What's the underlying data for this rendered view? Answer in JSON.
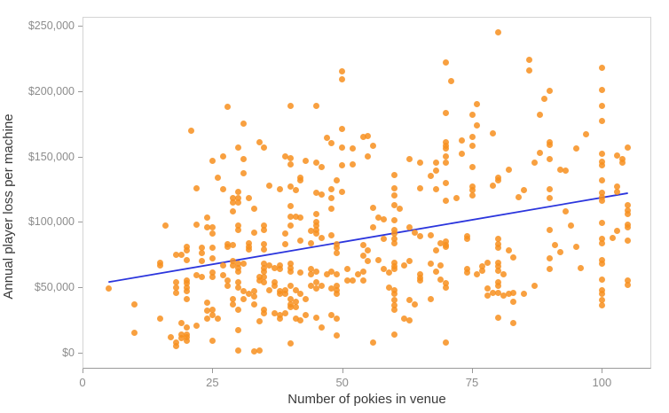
{
  "chart_data": {
    "type": "scatter",
    "title": "",
    "xlabel": "Number of pokies in venue",
    "ylabel": "Annual player loss per machine",
    "xlim": [
      0,
      109.5
    ],
    "ylim": [
      -12200,
      256800
    ],
    "grid": false,
    "legend": "none",
    "point_color": "#f78f1e",
    "point_opacity": 0.85,
    "trend_color": "#2b35dd",
    "axis_text_color": "#8c8c8c",
    "axis_title_color": "#3a3a3a",
    "x_ticks": [
      {
        "value": 0,
        "label": "0"
      },
      {
        "value": 25,
        "label": "25"
      },
      {
        "value": 50,
        "label": "50"
      },
      {
        "value": 75,
        "label": "75"
      },
      {
        "value": 100,
        "label": "100"
      }
    ],
    "y_ticks": [
      {
        "value": 0,
        "label": "$0"
      },
      {
        "value": 50000,
        "label": "$50,000"
      },
      {
        "value": 100000,
        "label": "$100,000"
      },
      {
        "value": 150000,
        "label": "$150,000"
      },
      {
        "value": 200000,
        "label": "$200,000"
      },
      {
        "value": 250000,
        "label": "$250,000"
      }
    ],
    "trend_line": {
      "x1": 5,
      "y1": 54000,
      "x2": 105,
      "y2": 122000
    },
    "points": [
      [
        21,
        170000
      ],
      [
        25,
        147000
      ],
      [
        26,
        134000
      ],
      [
        22,
        126000
      ],
      [
        50,
        215000
      ],
      [
        50,
        209000
      ],
      [
        28,
        188000
      ],
      [
        40,
        189000
      ],
      [
        45,
        189000
      ],
      [
        31,
        175000
      ],
      [
        50,
        171000
      ],
      [
        47,
        164000
      ],
      [
        48,
        160000
      ],
      [
        34,
        161000
      ],
      [
        35,
        157000
      ],
      [
        30,
        157000
      ],
      [
        50,
        157000
      ],
      [
        52,
        156000
      ],
      [
        54,
        165000
      ],
      [
        27,
        150000
      ],
      [
        39,
        150000
      ],
      [
        40,
        149000
      ],
      [
        31,
        148000
      ],
      [
        40,
        144000
      ],
      [
        43,
        147000
      ],
      [
        45,
        145000
      ],
      [
        46,
        142000
      ],
      [
        50,
        143000
      ],
      [
        52,
        144000
      ],
      [
        31,
        137000
      ],
      [
        42,
        134000
      ],
      [
        42,
        132000
      ],
      [
        36,
        128000
      ],
      [
        49,
        132000
      ],
      [
        40,
        127000
      ],
      [
        38,
        125000
      ],
      [
        41,
        124000
      ],
      [
        48,
        125000
      ],
      [
        50,
        123000
      ],
      [
        30,
        123000
      ],
      [
        27,
        125000
      ],
      [
        45,
        122000
      ],
      [
        46,
        121000
      ],
      [
        80,
        245000
      ],
      [
        70,
        222000
      ],
      [
        71,
        208000
      ],
      [
        76,
        190000
      ],
      [
        70,
        183000
      ],
      [
        75,
        182000
      ],
      [
        76,
        174000
      ],
      [
        55,
        166000
      ],
      [
        79,
        168000
      ],
      [
        75,
        165000
      ],
      [
        56,
        158000
      ],
      [
        73,
        162000
      ],
      [
        70,
        161000
      ],
      [
        70,
        158000
      ],
      [
        70,
        156000
      ],
      [
        73,
        152000
      ],
      [
        75,
        158000
      ],
      [
        55,
        150000
      ],
      [
        63,
        148000
      ],
      [
        65,
        145000
      ],
      [
        70,
        150000
      ],
      [
        70,
        145000
      ],
      [
        68,
        145000
      ],
      [
        68,
        139000
      ],
      [
        67,
        135000
      ],
      [
        75,
        142000
      ],
      [
        60,
        136000
      ],
      [
        80,
        134000
      ],
      [
        80,
        132000
      ],
      [
        79,
        128000
      ],
      [
        60,
        126000
      ],
      [
        65,
        126000
      ],
      [
        68,
        125000
      ],
      [
        70,
        130000
      ],
      [
        75,
        127000
      ],
      [
        75,
        124000
      ],
      [
        86,
        224000
      ],
      [
        86,
        216000
      ],
      [
        100,
        218000
      ],
      [
        90,
        200000
      ],
      [
        89,
        194000
      ],
      [
        100,
        201000
      ],
      [
        88,
        182000
      ],
      [
        100,
        189000
      ],
      [
        100,
        177000
      ],
      [
        97,
        167000
      ],
      [
        90,
        161000
      ],
      [
        90,
        159000
      ],
      [
        88,
        153000
      ],
      [
        95,
        156000
      ],
      [
        87,
        145000
      ],
      [
        90,
        148000
      ],
      [
        100,
        152000
      ],
      [
        103,
        151000
      ],
      [
        105,
        157000
      ],
      [
        104,
        148000
      ],
      [
        104,
        145000
      ],
      [
        100,
        146000
      ],
      [
        100,
        143000
      ],
      [
        82,
        140000
      ],
      [
        92,
        140000
      ],
      [
        93,
        139000
      ],
      [
        100,
        132000
      ],
      [
        85,
        124000
      ],
      [
        90,
        125000
      ],
      [
        103,
        127000
      ],
      [
        103,
        123000
      ],
      [
        100,
        122000
      ],
      [
        16,
        97000
      ],
      [
        22,
        98000
      ],
      [
        24,
        103000
      ],
      [
        24,
        96000
      ],
      [
        25,
        96000
      ],
      [
        25,
        91000
      ],
      [
        20,
        81000
      ],
      [
        19,
        75000
      ],
      [
        18,
        75000
      ],
      [
        20,
        78000
      ],
      [
        20,
        71000
      ],
      [
        23,
        80000
      ],
      [
        23,
        76000
      ],
      [
        25,
        80000
      ],
      [
        25,
        72000
      ],
      [
        23,
        70000
      ],
      [
        15,
        69000
      ],
      [
        15,
        67000
      ],
      [
        22,
        59000
      ],
      [
        23,
        58000
      ],
      [
        25,
        61000
      ],
      [
        25,
        58000
      ],
      [
        27,
        59000
      ],
      [
        27,
        67000
      ],
      [
        18,
        54000
      ],
      [
        18,
        50000
      ],
      [
        20,
        55000
      ],
      [
        20,
        53000
      ],
      [
        20,
        50000
      ],
      [
        20,
        47000
      ],
      [
        18,
        46000
      ],
      [
        20,
        41000
      ],
      [
        5,
        49000
      ],
      [
        10,
        37000
      ],
      [
        24,
        38000
      ],
      [
        24,
        32000
      ],
      [
        25,
        33000
      ],
      [
        25,
        29000
      ],
      [
        24,
        26000
      ],
      [
        26,
        26000
      ],
      [
        15,
        26000
      ],
      [
        10,
        15000
      ],
      [
        19,
        23000
      ],
      [
        20,
        19000
      ],
      [
        19,
        14000
      ],
      [
        20,
        14000
      ],
      [
        22,
        21000
      ],
      [
        17,
        12000
      ],
      [
        18,
        8000
      ],
      [
        25,
        9000
      ],
      [
        19,
        11000
      ],
      [
        20,
        12000
      ],
      [
        20,
        9000
      ],
      [
        18,
        5000
      ],
      [
        30,
        2000
      ],
      [
        33,
        1000
      ],
      [
        34,
        2000
      ],
      [
        29,
        118000
      ],
      [
        30,
        118000
      ],
      [
        29,
        115000
      ],
      [
        30,
        115000
      ],
      [
        32,
        118000
      ],
      [
        48,
        118000
      ],
      [
        40,
        112000
      ],
      [
        33,
        110000
      ],
      [
        48,
        110000
      ],
      [
        29,
        108000
      ],
      [
        40,
        104000
      ],
      [
        41,
        104000
      ],
      [
        40,
        97000
      ],
      [
        45,
        106000
      ],
      [
        45,
        100000
      ],
      [
        45,
        97000
      ],
      [
        45,
        94000
      ],
      [
        45,
        91000
      ],
      [
        42,
        103000
      ],
      [
        35,
        97000
      ],
      [
        35,
        94000
      ],
      [
        33,
        92000
      ],
      [
        30,
        97000
      ],
      [
        30,
        94000
      ],
      [
        39,
        91000
      ],
      [
        44,
        93000
      ],
      [
        48,
        90000
      ],
      [
        46,
        88000
      ],
      [
        28,
        83000
      ],
      [
        28,
        81000
      ],
      [
        29,
        82000
      ],
      [
        32,
        84000
      ],
      [
        32,
        81000
      ],
      [
        32,
        79000
      ],
      [
        35,
        83000
      ],
      [
        35,
        79000
      ],
      [
        39,
        83000
      ],
      [
        42,
        86000
      ],
      [
        44,
        84000
      ],
      [
        49,
        83000
      ],
      [
        49,
        80000
      ],
      [
        49,
        76000
      ],
      [
        54,
        82000
      ],
      [
        54,
        74000
      ],
      [
        54,
        62000
      ],
      [
        29,
        70000
      ],
      [
        29,
        67000
      ],
      [
        30,
        68000
      ],
      [
        31,
        68000
      ],
      [
        30,
        65000
      ],
      [
        30,
        62000
      ],
      [
        35,
        68000
      ],
      [
        35,
        65000
      ],
      [
        35,
        62000
      ],
      [
        36,
        67000
      ],
      [
        37,
        65000
      ],
      [
        38,
        67000
      ],
      [
        38,
        64000
      ],
      [
        40,
        68000
      ],
      [
        40,
        65000
      ],
      [
        40,
        62000
      ],
      [
        42,
        61000
      ],
      [
        44,
        64000
      ],
      [
        44,
        60000
      ],
      [
        45,
        62000
      ],
      [
        47,
        60000
      ],
      [
        48,
        62000
      ],
      [
        49,
        60000
      ],
      [
        51,
        64000
      ],
      [
        53,
        60000
      ],
      [
        28,
        55000
      ],
      [
        28,
        51000
      ],
      [
        30,
        54000
      ],
      [
        30,
        50000
      ],
      [
        31,
        47000
      ],
      [
        32,
        45000
      ],
      [
        33,
        47000
      ],
      [
        33,
        43000
      ],
      [
        34,
        58000
      ],
      [
        34,
        55000
      ],
      [
        35,
        58000
      ],
      [
        35,
        54000
      ],
      [
        37,
        54000
      ],
      [
        37,
        51000
      ],
      [
        36,
        48000
      ],
      [
        38,
        47000
      ],
      [
        38,
        45000
      ],
      [
        39,
        48000
      ],
      [
        39,
        45000
      ],
      [
        40,
        51000
      ],
      [
        41,
        48000
      ],
      [
        40,
        41000
      ],
      [
        40,
        37000
      ],
      [
        40,
        35000
      ],
      [
        41,
        39000
      ],
      [
        41,
        35000
      ],
      [
        42,
        45000
      ],
      [
        43,
        41000
      ],
      [
        44,
        51000
      ],
      [
        45,
        54000
      ],
      [
        45,
        49000
      ],
      [
        46,
        51000
      ],
      [
        48,
        49000
      ],
      [
        49,
        51000
      ],
      [
        49,
        48000
      ],
      [
        49,
        45000
      ],
      [
        51,
        55000
      ],
      [
        52,
        55000
      ],
      [
        54,
        55000
      ],
      [
        33,
        37000
      ],
      [
        31,
        41000
      ],
      [
        29,
        41000
      ],
      [
        29,
        37000
      ],
      [
        30,
        33000
      ],
      [
        35,
        33000
      ],
      [
        35,
        30000
      ],
      [
        34,
        24000
      ],
      [
        37,
        30000
      ],
      [
        38,
        29000
      ],
      [
        38,
        26000
      ],
      [
        39,
        30000
      ],
      [
        41,
        26000
      ],
      [
        42,
        25000
      ],
      [
        43,
        29000
      ],
      [
        45,
        27000
      ],
      [
        46,
        19000
      ],
      [
        48,
        29000
      ],
      [
        49,
        26000
      ],
      [
        49,
        13000
      ],
      [
        30,
        17000
      ],
      [
        40,
        7000
      ],
      [
        60,
        120000
      ],
      [
        70,
        116000
      ],
      [
        72,
        118000
      ],
      [
        75,
        120000
      ],
      [
        56,
        111000
      ],
      [
        60,
        113000
      ],
      [
        61,
        110000
      ],
      [
        57,
        103000
      ],
      [
        58,
        102000
      ],
      [
        56,
        96000
      ],
      [
        60,
        101000
      ],
      [
        60,
        94000
      ],
      [
        63,
        96000
      ],
      [
        60,
        91000
      ],
      [
        58,
        87000
      ],
      [
        60,
        87000
      ],
      [
        60,
        84000
      ],
      [
        64,
        92000
      ],
      [
        65,
        89000
      ],
      [
        67,
        90000
      ],
      [
        69,
        84000
      ],
      [
        70,
        85000
      ],
      [
        70,
        82000
      ],
      [
        70,
        81000
      ],
      [
        68,
        78000
      ],
      [
        74,
        87000
      ],
      [
        74,
        89000
      ],
      [
        80,
        87000
      ],
      [
        80,
        83000
      ],
      [
        80,
        80000
      ],
      [
        82,
        78000
      ],
      [
        55,
        78000
      ],
      [
        55,
        70000
      ],
      [
        57,
        71000
      ],
      [
        60,
        69000
      ],
      [
        60,
        66000
      ],
      [
        58,
        64000
      ],
      [
        59,
        61000
      ],
      [
        60,
        64000
      ],
      [
        63,
        70000
      ],
      [
        62,
        67000
      ],
      [
        65,
        60000
      ],
      [
        65,
        57000
      ],
      [
        65,
        55000
      ],
      [
        67,
        68000
      ],
      [
        68,
        62000
      ],
      [
        69,
        67000
      ],
      [
        69,
        56000
      ],
      [
        70,
        53000
      ],
      [
        70,
        50000
      ],
      [
        74,
        64000
      ],
      [
        74,
        61000
      ],
      [
        76,
        60000
      ],
      [
        77,
        66000
      ],
      [
        78,
        69000
      ],
      [
        77,
        63000
      ],
      [
        80,
        69000
      ],
      [
        80,
        66000
      ],
      [
        80,
        63000
      ],
      [
        80,
        54000
      ],
      [
        80,
        51000
      ],
      [
        81,
        60000
      ],
      [
        82,
        45000
      ],
      [
        80,
        46000
      ],
      [
        81,
        44000
      ],
      [
        78,
        49000
      ],
      [
        79,
        46000
      ],
      [
        78,
        44000
      ],
      [
        59,
        50000
      ],
      [
        60,
        48000
      ],
      [
        60,
        45000
      ],
      [
        63,
        40000
      ],
      [
        64,
        37000
      ],
      [
        67,
        41000
      ],
      [
        60,
        40000
      ],
      [
        60,
        36000
      ],
      [
        60,
        33000
      ],
      [
        62,
        26000
      ],
      [
        63,
        25000
      ],
      [
        60,
        14000
      ],
      [
        56,
        8000
      ],
      [
        70,
        8000
      ],
      [
        80,
        27000
      ],
      [
        84,
        119000
      ],
      [
        90,
        118000
      ],
      [
        100,
        119000
      ],
      [
        100,
        116000
      ],
      [
        105,
        113000
      ],
      [
        105,
        109000
      ],
      [
        105,
        106000
      ],
      [
        93,
        108000
      ],
      [
        94,
        97000
      ],
      [
        90,
        94000
      ],
      [
        100,
        99000
      ],
      [
        103,
        93000
      ],
      [
        102,
        88000
      ],
      [
        100,
        87000
      ],
      [
        100,
        84000
      ],
      [
        105,
        86000
      ],
      [
        105,
        98000
      ],
      [
        105,
        96000
      ],
      [
        91,
        82000
      ],
      [
        92,
        77000
      ],
      [
        95,
        81000
      ],
      [
        83,
        73000
      ],
      [
        90,
        72000
      ],
      [
        90,
        64000
      ],
      [
        96,
        65000
      ],
      [
        100,
        71000
      ],
      [
        100,
        68000
      ],
      [
        100,
        56000
      ],
      [
        100,
        48000
      ],
      [
        100,
        45000
      ],
      [
        100,
        40000
      ],
      [
        100,
        36000
      ],
      [
        105,
        55000
      ],
      [
        105,
        52000
      ],
      [
        87,
        51000
      ],
      [
        83,
        46000
      ],
      [
        85,
        45000
      ],
      [
        83,
        39000
      ],
      [
        83,
        23000
      ]
    ]
  }
}
